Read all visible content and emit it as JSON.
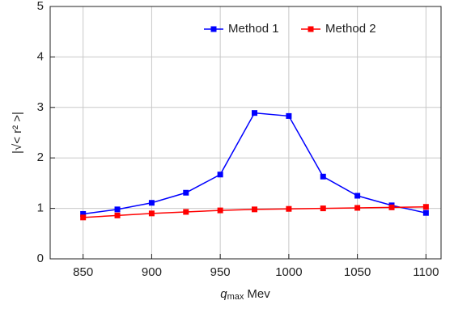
{
  "chart_data": {
    "type": "line",
    "x": [
      850,
      875,
      900,
      925,
      950,
      975,
      1000,
      1025,
      1050,
      1075,
      1100
    ],
    "series": [
      {
        "name": "Method 1",
        "color": "#0000ff",
        "values": [
          0.89,
          0.98,
          1.11,
          1.31,
          1.67,
          2.89,
          2.83,
          1.63,
          1.25,
          1.06,
          0.91
        ]
      },
      {
        "name": "Method 2",
        "color": "#ff0000",
        "values": [
          0.82,
          0.86,
          0.9,
          0.93,
          0.96,
          0.98,
          0.99,
          1.0,
          1.01,
          1.02,
          1.03
        ]
      }
    ],
    "xlabel": "q",
    "xlabel_subscript": "max",
    "xlabel_unit": "Mev",
    "ylabel": "|√< r² >|",
    "xlim": [
      826,
      1111
    ],
    "ylim": [
      0,
      5
    ],
    "xticks": [
      850,
      900,
      950,
      1000,
      1050,
      1100
    ],
    "yticks": [
      0,
      1,
      2,
      3,
      4,
      5
    ],
    "grid": true,
    "legend": "top"
  }
}
